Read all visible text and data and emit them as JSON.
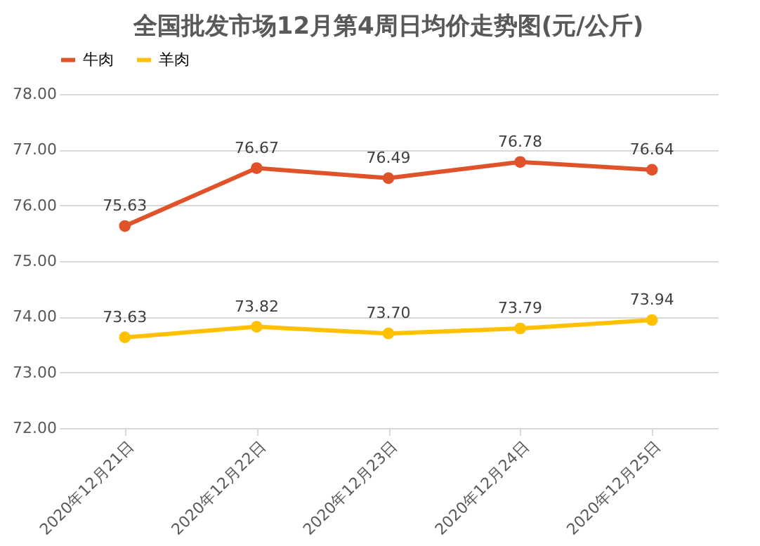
{
  "chart_data": {
    "type": "line",
    "title": "全国批发市场12月第4周日均价走势图(元/公斤)",
    "categories": [
      "2020年12月21日",
      "2020年12月22日",
      "2020年12月23日",
      "2020年12月24日",
      "2020年12月25日"
    ],
    "series": [
      {
        "name": "牛肉",
        "color": "#e0532a",
        "values": [
          75.63,
          76.67,
          76.49,
          76.78,
          76.64
        ],
        "value_labels": [
          "75.63",
          "76.67",
          "76.49",
          "76.78",
          "76.64"
        ]
      },
      {
        "name": "羊肉",
        "color": "#ffc000",
        "values": [
          73.63,
          73.82,
          73.7,
          73.79,
          73.94
        ],
        "value_labels": [
          "73.63",
          "73.82",
          "73.70",
          "73.79",
          "73.94"
        ]
      }
    ],
    "ylim": [
      72,
      78
    ],
    "yticks": [
      {
        "value": 72,
        "label": "72.00"
      },
      {
        "value": 73,
        "label": "73.00"
      },
      {
        "value": 74,
        "label": "74.00"
      },
      {
        "value": 75,
        "label": "75.00"
      },
      {
        "value": 76,
        "label": "76.00"
      },
      {
        "value": 77,
        "label": "77.00"
      },
      {
        "value": 78,
        "label": "78.00"
      }
    ],
    "grid": "y",
    "legend": "top",
    "marker": "circle",
    "line_style": "solid"
  }
}
